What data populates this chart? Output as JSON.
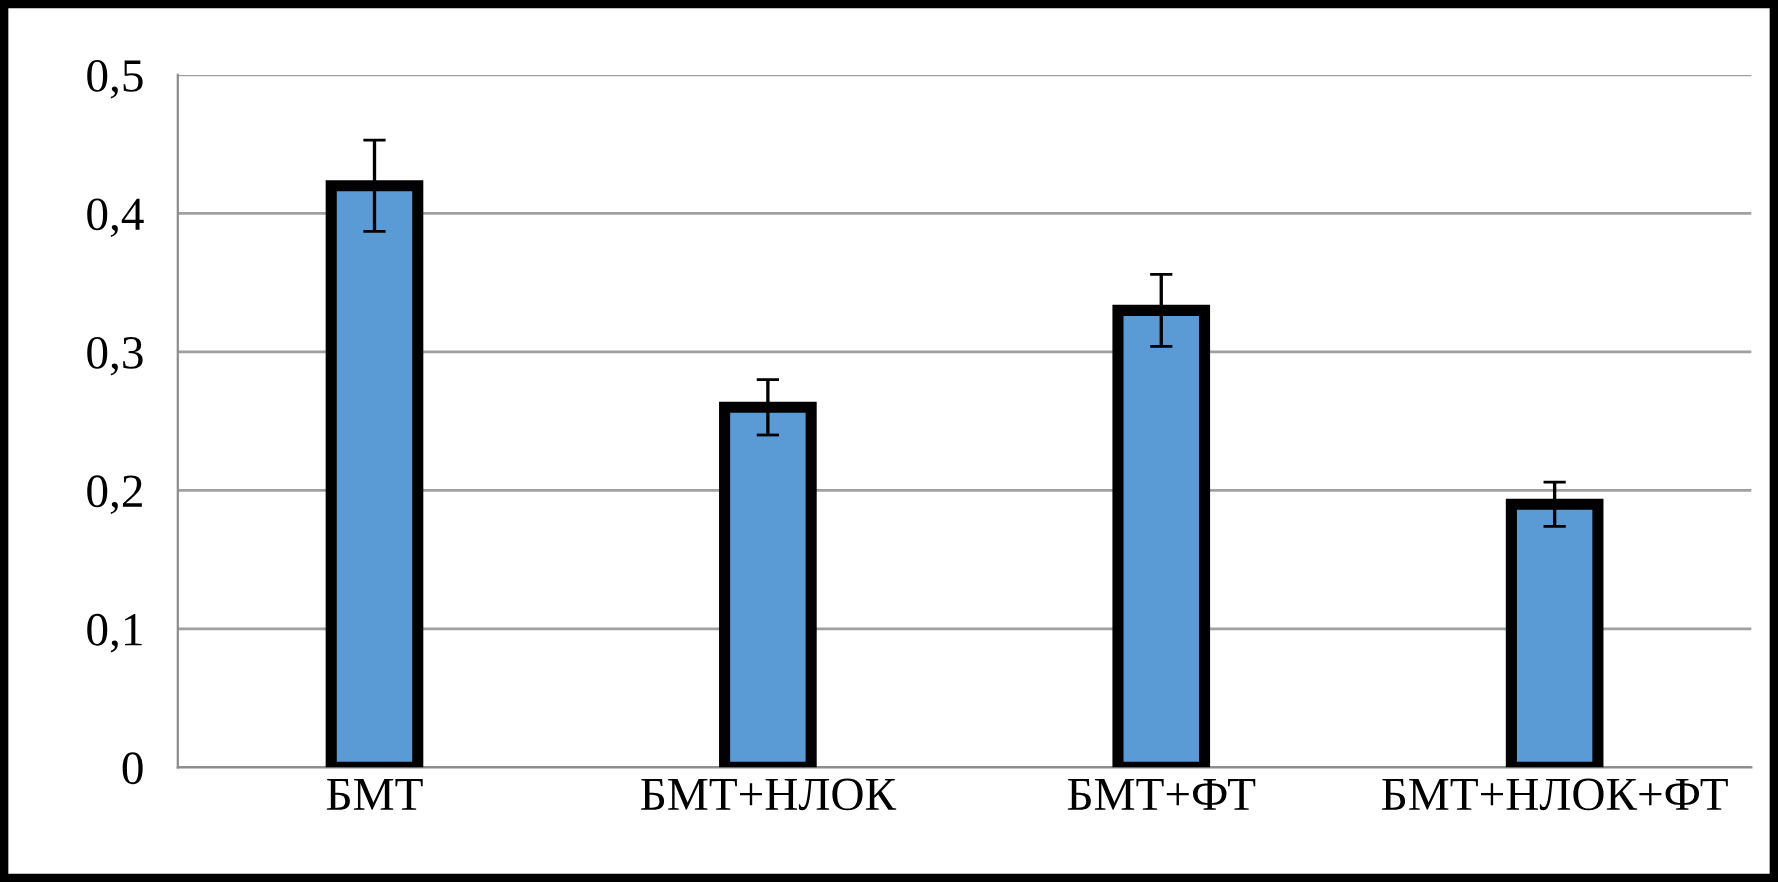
{
  "chart_data": {
    "type": "bar",
    "categories": [
      "БМТ",
      "БМТ+НЛОК",
      "БМТ+ФТ",
      "БМТ+НЛОК+ФТ"
    ],
    "values": [
      0.42,
      0.26,
      0.33,
      0.19
    ],
    "errors": [
      0.033,
      0.02,
      0.026,
      0.016
    ],
    "color": "#5b9bd5",
    "ylim": [
      0,
      0.5
    ],
    "yticks": [
      {
        "value": 0,
        "label": "0"
      },
      {
        "value": 0.1,
        "label": "0,1"
      },
      {
        "value": 0.2,
        "label": "0,2"
      },
      {
        "value": 0.3,
        "label": "0,3"
      },
      {
        "value": 0.4,
        "label": "0,4"
      },
      {
        "value": 0.5,
        "label": "0,5"
      }
    ],
    "grid": "y"
  }
}
